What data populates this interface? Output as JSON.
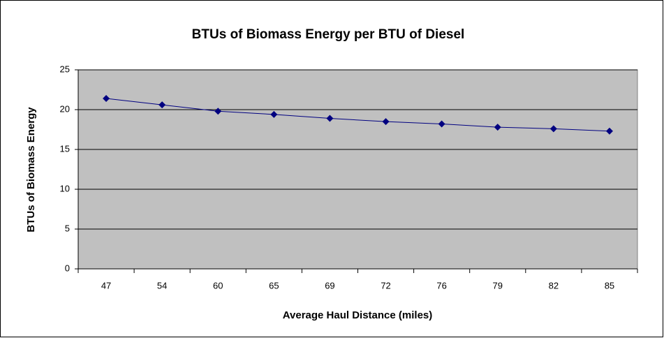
{
  "chart_data": {
    "type": "line",
    "title": "BTUs of Biomass Energy per BTU of Diesel",
    "x_label": "Average Haul Distance (miles)",
    "y_label": "BTUs of Biomass Energy",
    "categories": [
      "47",
      "54",
      "60",
      "65",
      "69",
      "72",
      "76",
      "79",
      "82",
      "85"
    ],
    "values": [
      21.4,
      20.6,
      19.8,
      19.4,
      18.9,
      18.5,
      18.2,
      17.8,
      17.6,
      17.3
    ],
    "color": "#000080",
    "ylim": [
      0,
      25
    ],
    "yticks": [
      0,
      5,
      10,
      15,
      20,
      25
    ],
    "grid": true
  }
}
